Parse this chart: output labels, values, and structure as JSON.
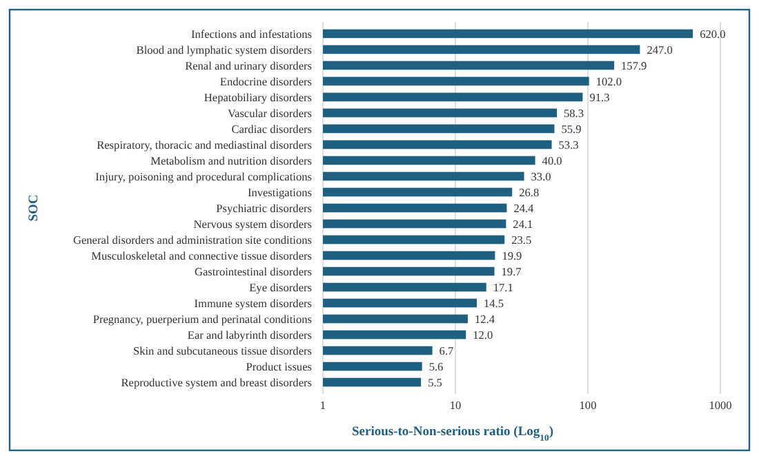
{
  "chart_data": {
    "type": "bar",
    "orientation": "horizontal",
    "log": "x",
    "xlabel": "Serious-to-Non-serious ratio (Log$_{10}$)",
    "ylabel": "SOC",
    "categories": [
      "Infections and infestations",
      "Blood and lymphatic system disorders",
      "Renal and urinary disorders",
      "Endocrine disorders",
      "Hepatobiliary disorders",
      "Vascular disorders",
      "Cardiac disorders",
      "Respiratory, thoracic and mediastinal disorders",
      "Metabolism and nutrition disorders",
      "Injury, poisoning and procedural complications",
      "Investigations",
      "Psychiatric disorders",
      "Nervous system disorders",
      "General disorders and administration site conditions",
      "Musculoskeletal and connective tissue disorders",
      "Gastrointestinal disorders",
      "Eye disorders",
      "Immune system disorders",
      "Pregnancy, puerperium and perinatal conditions",
      "Ear and labyrinth disorders",
      "Skin and subcutaneous tissue disorders",
      "Product issues",
      "Reproductive system and breast disorders"
    ],
    "values": [
      620.0,
      247.0,
      157.9,
      102.0,
      91.3,
      58.3,
      55.9,
      53.3,
      40.0,
      33.0,
      26.8,
      24.4,
      24.1,
      23.5,
      19.9,
      19.7,
      17.1,
      14.5,
      12.4,
      12.0,
      6.7,
      5.6,
      5.5
    ],
    "value_labels": [
      "620.0",
      "247.0",
      "157.9",
      "102.0",
      "91.3",
      "58.3",
      "55.9",
      "53.3",
      "40.0",
      "33.0",
      "26.8",
      "24.4",
      "24.1",
      "23.5",
      "19.9",
      "19.7",
      "17.1",
      "14.5",
      "12.4",
      "12.0",
      "6.7",
      "5.6",
      "5.5"
    ],
    "color": "#1f5f7f",
    "xlim": [
      1,
      1000
    ],
    "xticks": [
      1,
      10,
      100,
      1000
    ],
    "grid": "x"
  }
}
